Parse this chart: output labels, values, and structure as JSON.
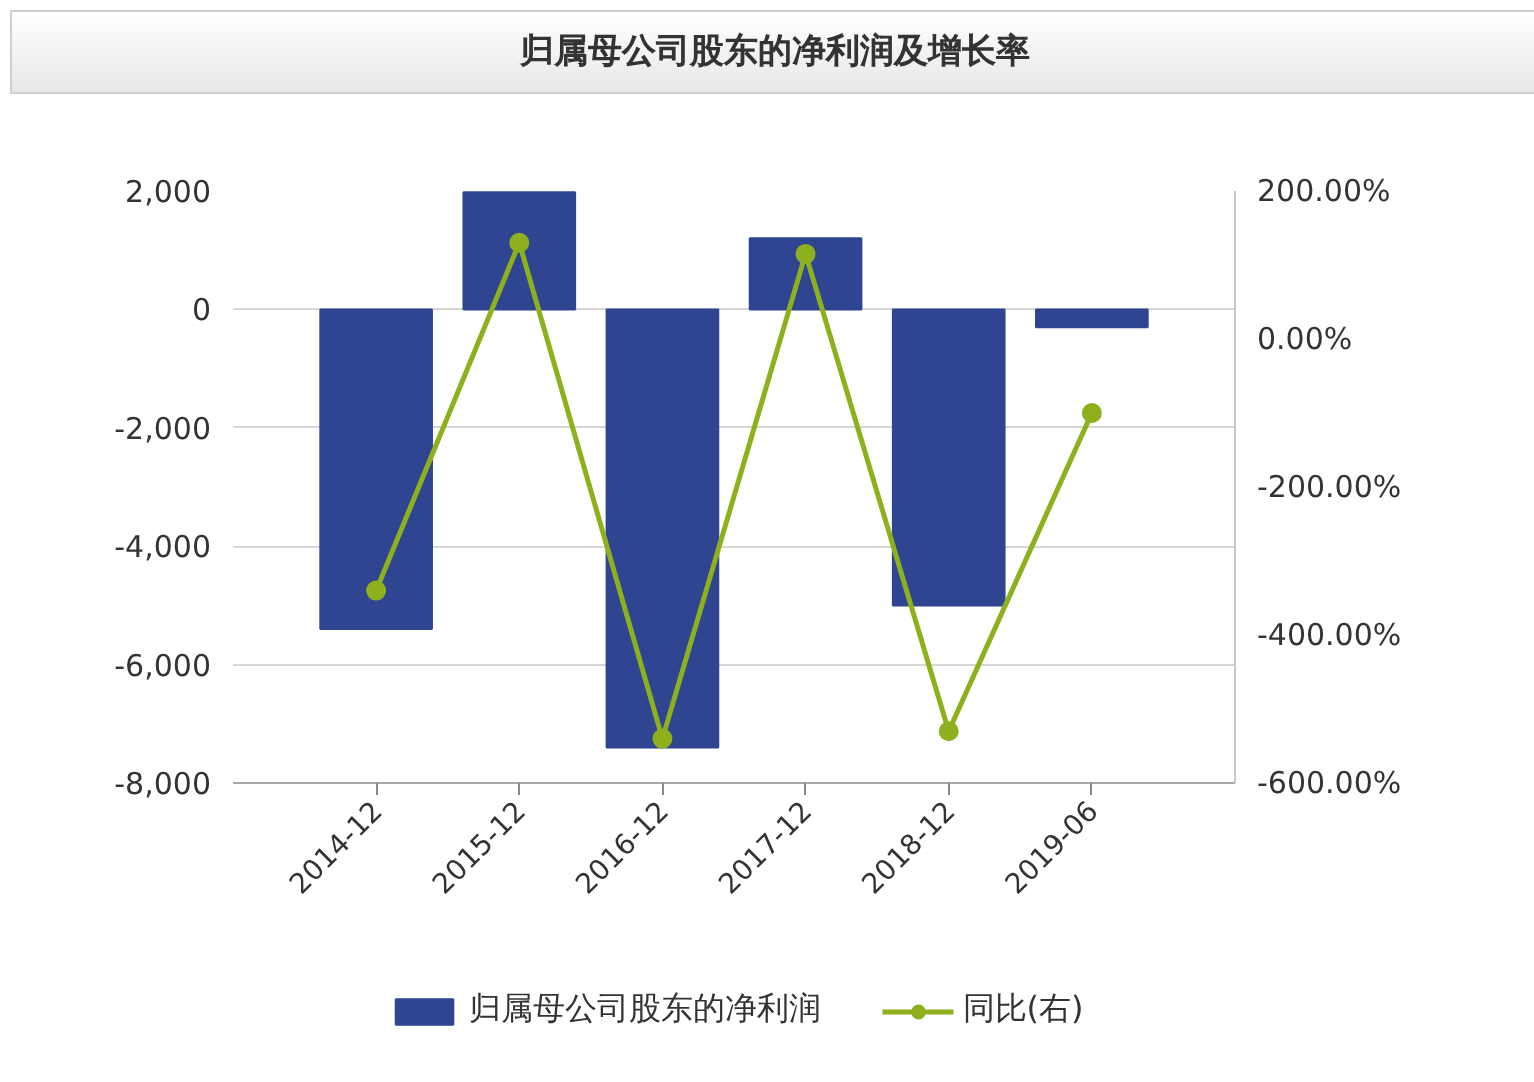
{
  "chart_data": {
    "type": "bar",
    "title": "归属母公司股东的净利润及增长率",
    "categories": [
      "2014-12",
      "2015-12",
      "2016-12",
      "2017-12",
      "2018-12",
      "2019-06"
    ],
    "series": [
      {
        "name": "归属母公司股东的净利润",
        "color": "#2f4592",
        "values": [
          -5400,
          1980,
          -7400,
          1200,
          -5000,
          -300
        ]
      },
      {
        "name": "同比(右)",
        "type": "line",
        "axis": "y2",
        "color": "#8db01c",
        "values": [
          -340,
          130,
          -540,
          115,
          -530,
          -100
        ]
      }
    ],
    "ylim": [
      -8000,
      2000
    ],
    "yticks": [
      {
        "value": -8000,
        "label": "-8,000"
      },
      {
        "value": -6000,
        "label": "-6,000"
      },
      {
        "value": -4000,
        "label": "-4,000"
      },
      {
        "value": -2000,
        "label": "-2,000"
      },
      0,
      {
        "value": 2000,
        "label": "2,000"
      }
    ],
    "y2lim": [
      -600,
      200
    ],
    "y2ticks": [
      {
        "value": -600,
        "label": "-600.00%"
      },
      {
        "value": -400,
        "label": "-400.00%"
      },
      {
        "value": -200,
        "label": "-200.00%"
      },
      {
        "value": 0,
        "label": "0.00%"
      },
      {
        "value": 200,
        "label": "200.00%"
      }
    ],
    "marker": "circle",
    "grid": "y",
    "legend": "bottom"
  }
}
